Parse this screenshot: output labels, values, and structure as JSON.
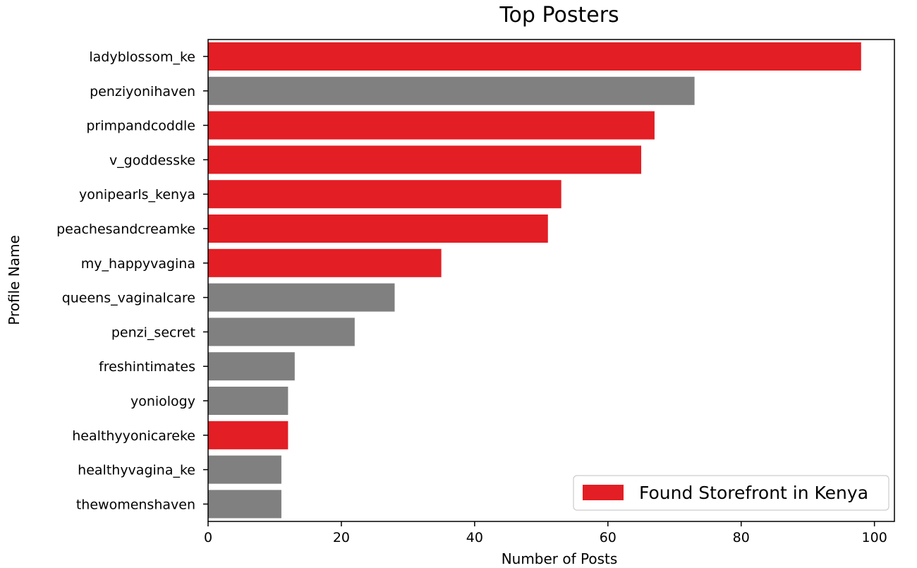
{
  "chart_data": {
    "type": "bar",
    "orientation": "horizontal",
    "title": "Top Posters",
    "xlabel": "Number of Posts",
    "ylabel": "Profile Name",
    "xlim": [
      0,
      103
    ],
    "xticks": [
      0,
      20,
      40,
      60,
      80,
      100
    ],
    "grid": false,
    "legend": {
      "position": "bottom-right",
      "entries": [
        {
          "label": "Found Storefront in Kenya",
          "color": "#e31e24"
        }
      ]
    },
    "colors": {
      "storefront": "#e31e24",
      "other": "#808080"
    },
    "categories": [
      "ladyblossom_ke",
      "penziyonihaven",
      "primpandcoddle",
      "v_goddesske",
      "yonipearls_kenya",
      "peachesandcreamke",
      "my_happyvagina",
      "queens_vaginalcare",
      "penzi_secret",
      "freshintimates",
      "yoniology",
      "healthyyonicareke",
      "healthyvagina_ke",
      "thewomenshaven"
    ],
    "values": [
      98,
      73,
      67,
      65,
      53,
      51,
      35,
      28,
      22,
      13,
      12,
      12,
      11,
      11
    ],
    "storefront_found": [
      true,
      false,
      true,
      true,
      true,
      true,
      true,
      false,
      false,
      false,
      false,
      true,
      false,
      false
    ]
  }
}
